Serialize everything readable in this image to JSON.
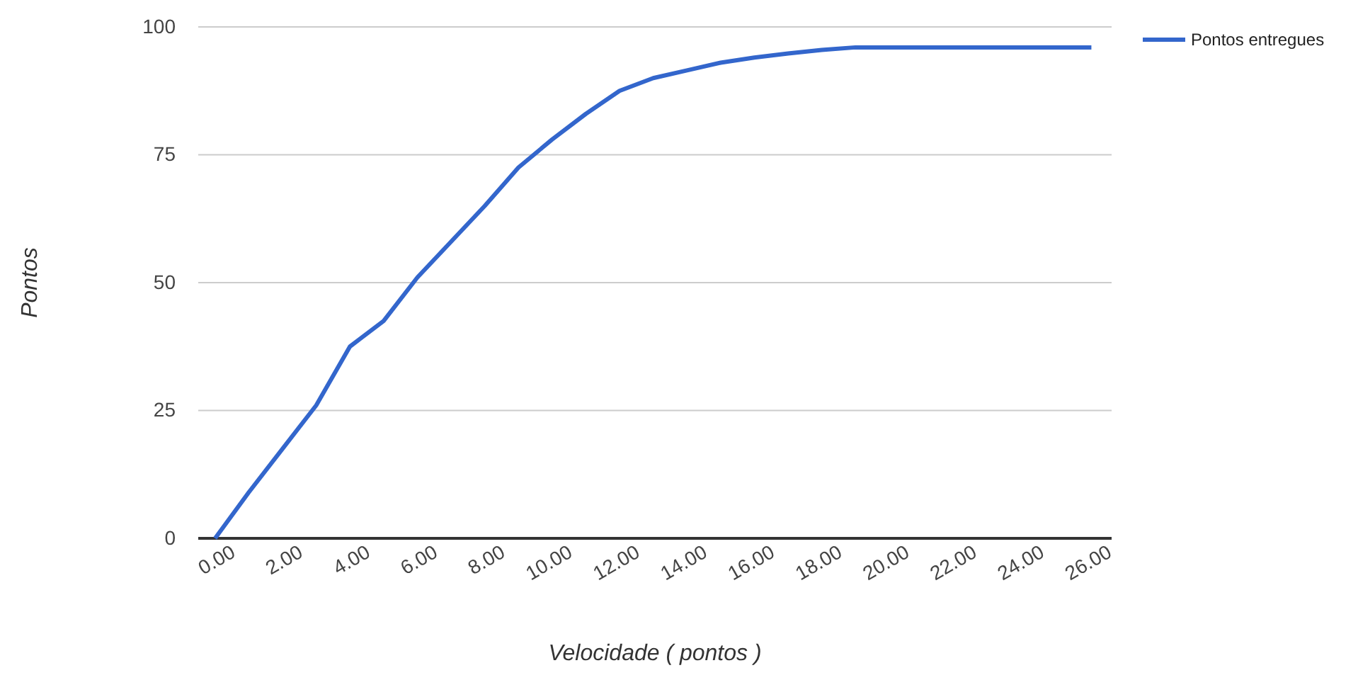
{
  "chart_data": {
    "type": "line",
    "xlabel": "Velocidade ( pontos )",
    "ylabel": "Pontos",
    "x": [
      0,
      1,
      2,
      3,
      4,
      5,
      6,
      7,
      8,
      9,
      10,
      11,
      12,
      13,
      14,
      15,
      16,
      17,
      18,
      19,
      20,
      21,
      22,
      23,
      24,
      25,
      26
    ],
    "series": [
      {
        "name": "Pontos entregues",
        "color": "#3366cc",
        "values": [
          0,
          9,
          17.5,
          26,
          37.5,
          42.5,
          51,
          58,
          65,
          72.5,
          78,
          83,
          87.5,
          90,
          91.5,
          93,
          94,
          94.8,
          95.5,
          96,
          96,
          96,
          96,
          96,
          96,
          96,
          96
        ]
      }
    ],
    "xlim": [
      -0.5,
      26.6
    ],
    "xticks": [
      {
        "value": 0,
        "label": "0.00"
      },
      {
        "value": 2,
        "label": "2.00"
      },
      {
        "value": 4,
        "label": "4.00"
      },
      {
        "value": 6,
        "label": "6.00"
      },
      {
        "value": 8,
        "label": "8.00"
      },
      {
        "value": 10,
        "label": "10.00"
      },
      {
        "value": 12,
        "label": "12.00"
      },
      {
        "value": 14,
        "label": "14.00"
      },
      {
        "value": 16,
        "label": "16.00"
      },
      {
        "value": 18,
        "label": "18.00"
      },
      {
        "value": 20,
        "label": "20.00"
      },
      {
        "value": 22,
        "label": "22.00"
      },
      {
        "value": 24,
        "label": "24.00"
      },
      {
        "value": 26,
        "label": "26.00"
      }
    ],
    "ylim": [
      0,
      100
    ],
    "yticks": [
      0,
      25,
      50,
      75,
      100
    ],
    "grid": "y",
    "legend": "top right",
    "marker": "none",
    "line_style": "solid"
  }
}
